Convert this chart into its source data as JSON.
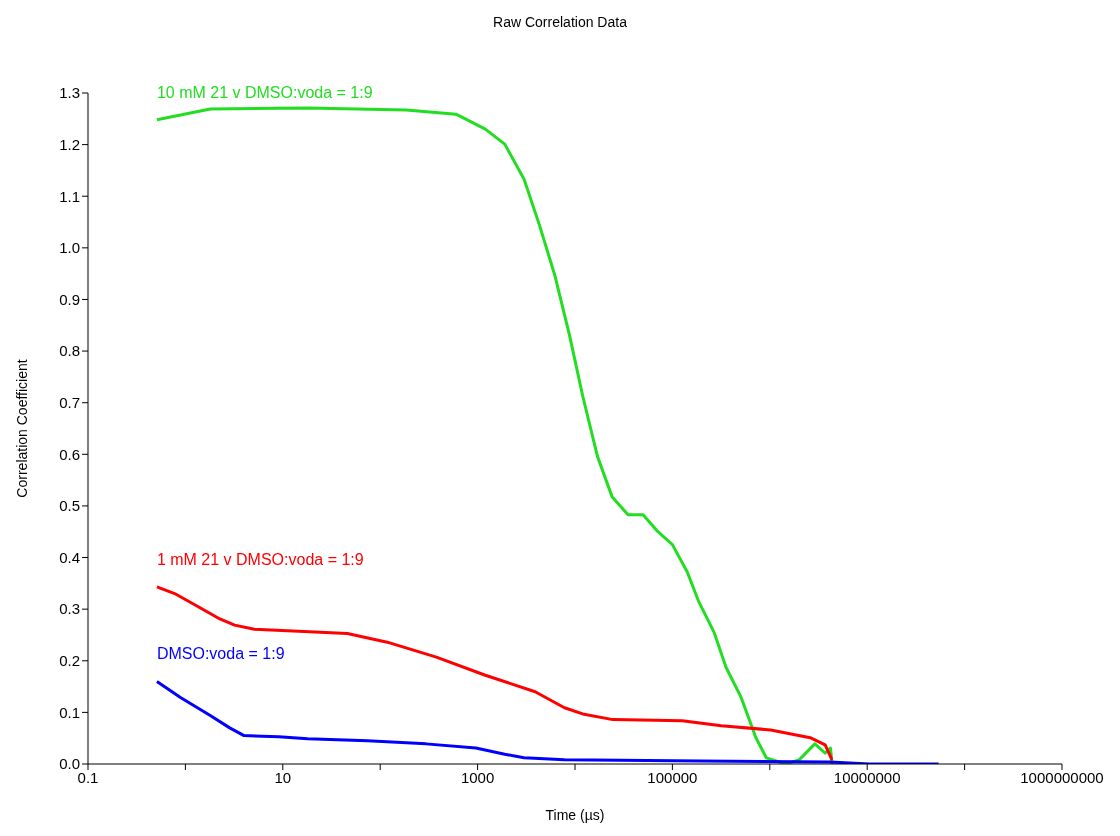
{
  "chart_data": {
    "type": "line",
    "title": "Raw Correlation Data",
    "xlabel": "Time (µs)",
    "ylabel": "Correlation Coefficient",
    "log": "x",
    "legend": false,
    "marker": "none",
    "line_style": "solid",
    "xlim": [
      0.1,
      1000000000
    ],
    "xticks": [
      0.1,
      {
        "value": 1,
        "label": null
      },
      10,
      {
        "value": 100,
        "label": null
      },
      1000,
      {
        "value": 10000,
        "label": null
      },
      100000,
      {
        "value": 1000000,
        "label": null
      },
      10000000,
      {
        "value": 100000000,
        "label": null
      },
      1000000000
    ],
    "ylim": [
      0,
      1.3
    ],
    "yticks": [
      {
        "value": 0,
        "label": "0.0"
      },
      0.1,
      0.2,
      0.3,
      0.4,
      0.5,
      0.6,
      0.7,
      0.8,
      0.9,
      {
        "value": 1,
        "label": "1.0"
      },
      1.1,
      1.2,
      1.3
    ],
    "series": [
      {
        "name": "10 mM 21 v DMSO:voda = 1:9",
        "color": "#22dd22",
        "x": [
          0.51,
          1.8,
          18,
          185,
          600,
          1200,
          1900,
          3000,
          4300,
          6200,
          8800,
          12000,
          17000,
          24000,
          35000,
          50000,
          71000,
          100000,
          142000,
          187000,
          268000,
          356000,
          508000,
          720000,
          920000,
          1450000,
          2000000,
          2900000,
          3700000,
          4200000,
          4350000
        ],
        "values": [
          1.248,
          1.269,
          1.271,
          1.267,
          1.259,
          1.23,
          1.201,
          1.133,
          1.045,
          0.947,
          0.83,
          0.713,
          0.596,
          0.518,
          0.483,
          0.483,
          0.45,
          0.425,
          0.372,
          0.314,
          0.255,
          0.187,
          0.129,
          0.051,
          0.012,
          0,
          0.008,
          0.039,
          0.021,
          0.031,
          0
        ]
      },
      {
        "name": "1 mM 21 v DMSO:voda = 1:9",
        "color": "#ff0000",
        "x": [
          0.51,
          0.8,
          1.26,
          2.26,
          3.2,
          5.1,
          14.5,
          46,
          118,
          377,
          1200,
          3900,
          7800,
          12000,
          24500,
          126000,
          318000,
          1020000,
          2600000,
          3700000,
          4350000
        ],
        "values": [
          0.343,
          0.329,
          0.308,
          0.281,
          0.269,
          0.261,
          0.257,
          0.253,
          0.236,
          0.207,
          0.172,
          0.14,
          0.109,
          0.097,
          0.086,
          0.084,
          0.074,
          0.066,
          0.051,
          0.037,
          0.008
        ]
      },
      {
        "name": "DMSO:voda = 1:9",
        "color": "#0000ff",
        "x": [
          0.51,
          0.89,
          1.8,
          2.85,
          4,
          9.1,
          18,
          74,
          295,
          960,
          1900,
          3000,
          7800,
          200000,
          4200000,
          10500000,
          54000000
        ],
        "values": [
          0.16,
          0.129,
          0.094,
          0.07,
          0.055,
          0.053,
          0.049,
          0.045,
          0.039,
          0.031,
          0.019,
          0.012,
          0.008,
          0.006,
          0.004,
          0,
          0
        ]
      }
    ]
  }
}
